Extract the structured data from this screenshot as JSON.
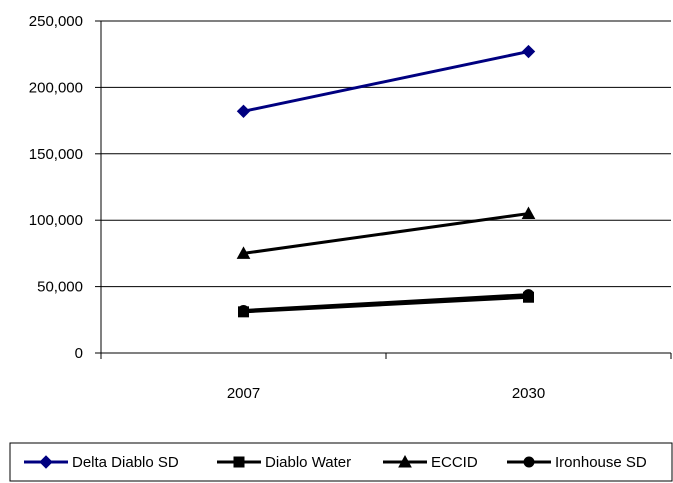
{
  "chart_data": {
    "type": "line",
    "categories": [
      "2007",
      "2030"
    ],
    "ylim": [
      0,
      250000
    ],
    "y_ticks": [
      0,
      50000,
      100000,
      150000,
      200000,
      250000
    ],
    "y_tick_labels": [
      "0",
      "50,000",
      "100,000",
      "150,000",
      "200,000",
      "250,000"
    ],
    "grid": "horizontal",
    "legend_position": "bottom",
    "series": [
      {
        "name": "Delta Diablo SD",
        "values": [
          182000,
          227000
        ],
        "color": "#000080",
        "marker": "diamond"
      },
      {
        "name": "Diablo Water",
        "values": [
          31000,
          42000
        ],
        "color": "#000000",
        "marker": "square"
      },
      {
        "name": "ECCID",
        "values": [
          75000,
          105000
        ],
        "color": "#000000",
        "marker": "triangle"
      },
      {
        "name": "Ironhouse SD",
        "values": [
          32000,
          44000
        ],
        "color": "#000000",
        "marker": "circle"
      }
    ]
  }
}
